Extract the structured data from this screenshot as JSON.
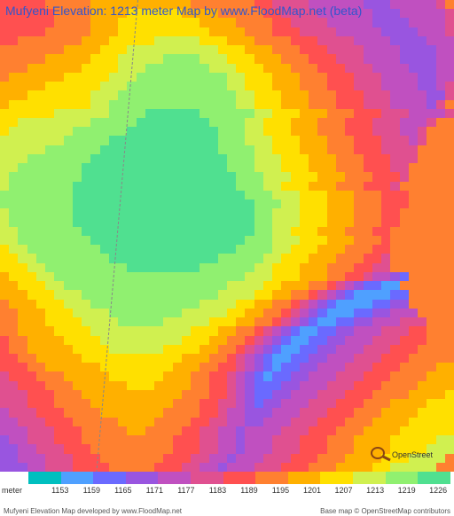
{
  "title": "Mufyeni Elevation: 1213 meter Map by www.FloodMap.net (beta)",
  "search_label": "OpenStreet",
  "legend": {
    "unit": "meter",
    "values": [
      "1153",
      "1159",
      "1165",
      "1171",
      "1177",
      "1183",
      "1189",
      "1195",
      "1201",
      "1207",
      "1213",
      "1219",
      "1226"
    ],
    "colors": [
      "#00bfbf",
      "#4fa0ff",
      "#6a6aff",
      "#9955e0",
      "#c050c0",
      "#e05090",
      "#ff5050",
      "#ff8030",
      "#ffb000",
      "#ffe000",
      "#d0f050",
      "#90f070",
      "#50e090"
    ]
  },
  "credits": {
    "left": "Mufyeni Elevation Map developed by www.FloodMap.net",
    "right": "Base map © OpenStreetMap contributors"
  },
  "map": {
    "background_color": "#ffffff",
    "grid_cols": 50,
    "grid_rows": 52,
    "palette": [
      "#00bfbf",
      "#4fa0ff",
      "#6a6aff",
      "#9955e0",
      "#c050c0",
      "#e05090",
      "#ff5050",
      "#ff8030",
      "#ffb000",
      "#ffe000",
      "#d0f050",
      "#90f070",
      "#50e090"
    ],
    "rows": [
      "6666677777888888888887777777665555444444333444445",
      "66666677778888999999888877777665555444444333444445",
      "66666677778889999999998888777766555544444333344445",
      "66666777778889999999999888877766655554444433334445",
      "66777777788899999aaaaa99988877776665555444433334445",
      "77777778888999aaaaaaaaaa999888777666555544443333445",
      "7777788888999aaaaabbbbaaa99988877766655544443333445",
      "7778888889999aaabbbbbbbaaa9998887776665554444333445",
      "788888899999aaabbbbbbbbbbaa999888777666555444433445",
      "88888999999aaabbbbbbbbbbbaa99988877766655544443345",
      "8889999999aaabbbbbbbbbbbbbaa9998887776665554444335",
      "8999999999aabbbbbbbbbbbbbbaa999888777666555444435",
      "999999aaaaaabbbbccccccbbbbbbaa99988877766655544445",
      "99aaaaaaaabbbbbccccccccbbbbaa9998887776665554445",
      "9aaaaaaabbbbbbccccccccccbbbaa999888777666555445",
      "aaaaaaabbbbbccccccccccccbbbaaa99988877766655545",
      "aaaaabbbbbbcccccccccccccbbbbaa9998887776665555",
      "aaabbbbbbbcccccccccccccccbbbaaa999888777666555",
      "aabbbbbbbccccccccccccccccbbbaaa99988877766655",
      "abbbbbbbbcccccccccccccccccbbbaaa9998887776665",
      "abbbbbbbccccccccccccccccccbbbaa9998887776665",
      "bbbbbbbbcccccccccccccccccccbbbaaa999888777666",
      "bbbbbbbbccccccccccccccccccccbbbaa999888777666",
      "abbbbbbbccccccccccccccccccccbbaaa99988877766",
      "abbbbbbbccccccccccccccccccccbbaaa99988877766",
      "aabbbbbbbcccccccccccccccccccbbaa99988877766",
      "aabbbbbbbbcccccccccccccccccbbbaaa9998887776",
      "9aabbbbbbbbcccccccccccccccbbbbaa99988877766",
      "99aabbbbbbbbccccccccccccbbbbbaa999888777665",
      "999aabbbbbbbbbccccccccbbbbbbaa9998887776655",
      "8999aabbbbbbbbbbbbbbbbbbbbbaaa999888776654432",
      "88999aabbbbbbbbbbbbbbbbbbaaaa998887765432211",
      "888999aaabbbbbbbbbbbbbbbaaaa99887765432111122",
      "7888999aaabbbbbbbbbbbbaaaa9988776543211112233",
      "77888999aaaabbbbbbbbaaaaa998877654321112233444",
      "778889999aaaabbbbbaaaaa999887765432112233444555",
      "7788889999aaaaaaaaaaa99988776543211223344455566",
      "67788889999aaaaaaaaa999887765432112233444555666",
      "677888889999aaaaaa999988776543211223344455566677",
      "6677888889999999999988877654321122334445556667777",
      "66677888888999999998887766543212233444555666777788",
      "56667778888899999988877665432122334445556667777888",
      "55666777888888999888877665432223344455566677778888",
      "555666777888888888887776654322334445556667777888899",
      "55566677778888888887776655432334445556667778888999",
      "45556667777888888877776654433344455566677788889999",
      "44555666777778888777766554433444555666777888899999",
      "44455566677777887777665544344445556667778888999999",
      "344555666777777777766655443444555666777888899999aa",
      "33445556667777777776665544344455566677788889999aaa",
      "334445556667777777666554434445556667778888999aaaa",
      "3334455566667777766655443444555666777888899aaaaa"
    ]
  }
}
